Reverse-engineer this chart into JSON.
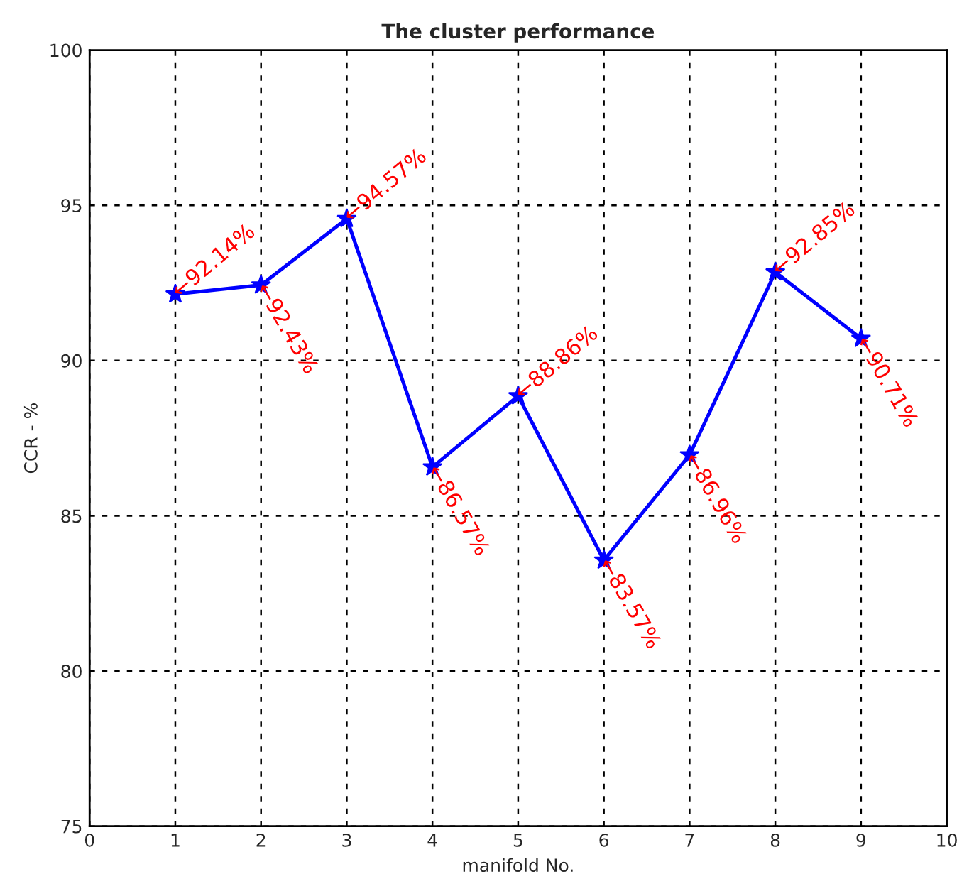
{
  "chart_data": {
    "type": "line",
    "title": "The cluster performance",
    "xlabel": "manifold No.",
    "ylabel": "CCR - %",
    "x": [
      1,
      2,
      3,
      4,
      5,
      6,
      7,
      8,
      9
    ],
    "series": [
      {
        "color": "#0000ff",
        "values": [
          92.14,
          92.43,
          94.57,
          86.57,
          88.86,
          83.57,
          86.96,
          92.85,
          90.71
        ]
      }
    ],
    "annotations": [
      {
        "text": "←92.14%",
        "x": 1,
        "y": 92.14
      },
      {
        "text": "←92.43%",
        "x": 2,
        "y": 92.43
      },
      {
        "text": "←94.57%",
        "x": 3,
        "y": 94.57
      },
      {
        "text": "←86.57%",
        "x": 4,
        "y": 86.57
      },
      {
        "text": "←88.86%",
        "x": 5,
        "y": 88.86
      },
      {
        "text": "←83.57%",
        "x": 6,
        "y": 83.57
      },
      {
        "text": "←86.96%",
        "x": 7,
        "y": 86.96
      },
      {
        "text": "←92.85%",
        "x": 8,
        "y": 92.85
      },
      {
        "text": "←90.71%",
        "x": 9,
        "y": 90.71
      }
    ],
    "xlim": [
      0,
      10
    ],
    "xticks": [
      0,
      1,
      2,
      3,
      4,
      5,
      6,
      7,
      8,
      9,
      10
    ],
    "ylim": [
      75,
      100
    ],
    "yticks": [
      75,
      80,
      85,
      90,
      95,
      100
    ],
    "grid": true,
    "marker": "star",
    "line_style": "solid"
  }
}
